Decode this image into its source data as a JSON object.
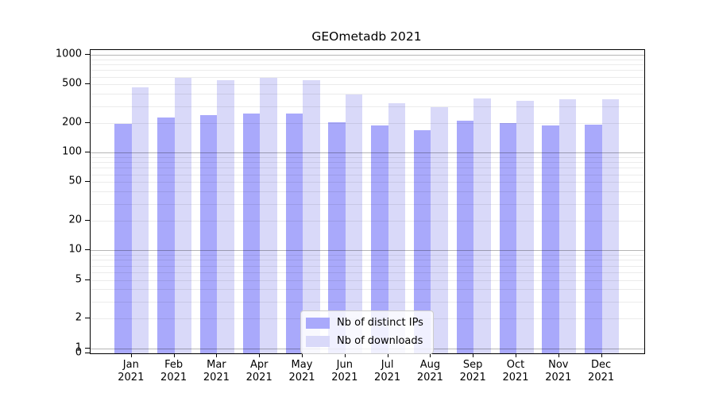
{
  "chart_data": {
    "type": "bar",
    "title": "GEOmetadb 2021",
    "categories": [
      "Jan 2021",
      "Feb 2021",
      "Mar 2021",
      "Apr 2021",
      "May 2021",
      "Jun 2021",
      "Jul 2021",
      "Aug 2021",
      "Sep 2021",
      "Oct 2021",
      "Nov 2021",
      "Dec 2021"
    ],
    "series": [
      {
        "name": "Nb of distinct IPs",
        "color": "#a9a9fb",
        "values": [
          197,
          230,
          242,
          250,
          251,
          206,
          189,
          171,
          214,
          200,
          190,
          193
        ]
      },
      {
        "name": "Nb of downloads",
        "color": "#d9d9f9",
        "values": [
          471,
          583,
          551,
          579,
          551,
          397,
          322,
          290,
          356,
          339,
          353,
          353
        ]
      }
    ],
    "yscale": "log",
    "ylim": [
      0,
      1000
    ],
    "ytick_labels": [
      "1000",
      "500",
      "200",
      "100",
      "50",
      "20",
      "10",
      "5",
      "2",
      "1",
      "0"
    ],
    "xlabel": "",
    "ylabel": "",
    "grid": true,
    "legend_position": "lower center"
  }
}
